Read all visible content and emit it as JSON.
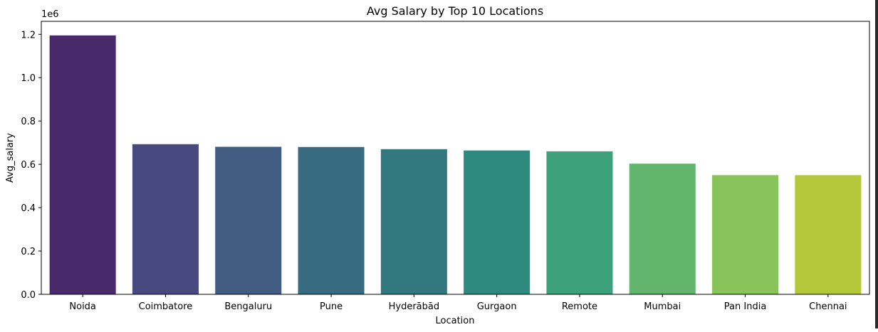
{
  "chart_data": {
    "type": "bar",
    "title": "Avg Salary by Top 10 Locations",
    "xlabel": "Location",
    "ylabel": "Avg_salary",
    "y_offset_label": "1e6",
    "categories": [
      "Noida",
      "Coimbatore",
      "Bengaluru",
      "Pune",
      "Hyderābād",
      "Gurgaon",
      "Remote",
      "Mumbai",
      "Pan India",
      "Chennai"
    ],
    "values": [
      1195000,
      693000,
      681000,
      680000,
      670000,
      664000,
      660000,
      603000,
      550000,
      550000
    ],
    "ylim": [
      0,
      1260000
    ],
    "yticks": [
      0,
      200000,
      400000,
      600000,
      800000,
      1000000,
      1200000
    ],
    "ytick_labels": [
      "0.0",
      "0.2",
      "0.4",
      "0.6",
      "0.8",
      "1.0",
      "1.2"
    ],
    "colors": [
      "#482a6b",
      "#484a7f",
      "#425c82",
      "#386b80",
      "#31797f",
      "#2e897e",
      "#3da17c",
      "#61b56d",
      "#88c459",
      "#b2c83a"
    ],
    "grid": false,
    "legend": "none"
  }
}
